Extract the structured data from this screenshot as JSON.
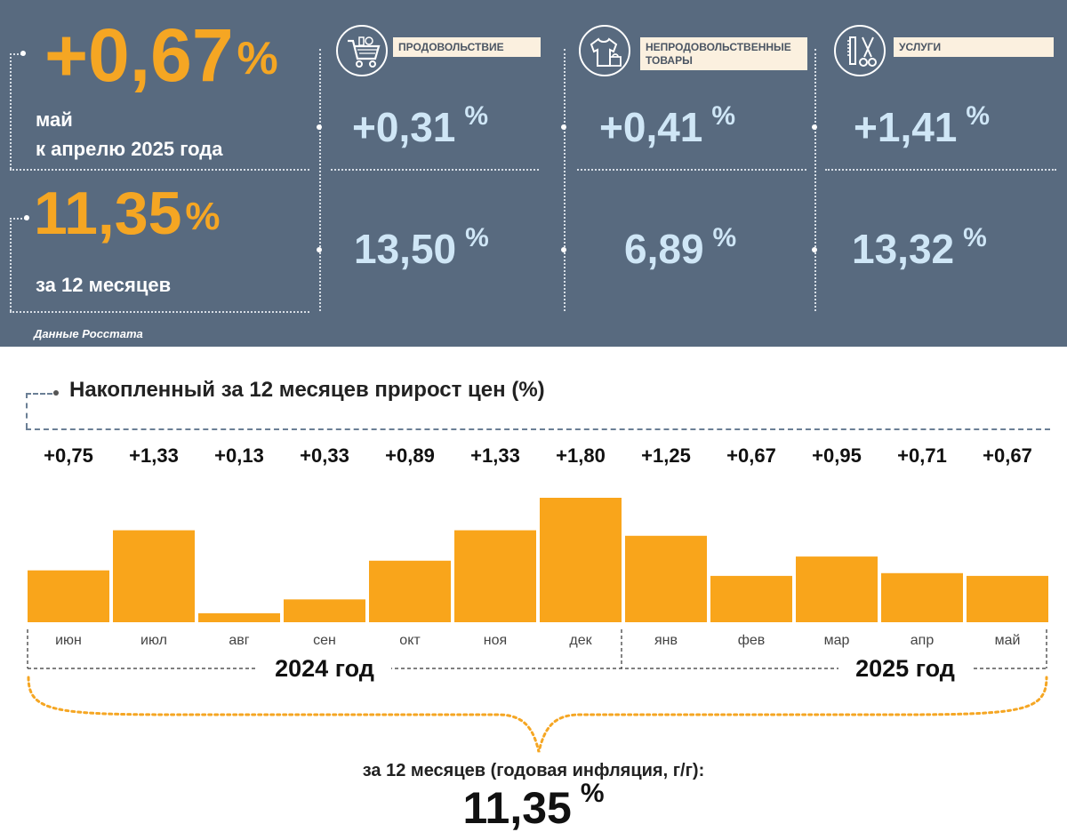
{
  "summary": {
    "monthly_value": "+0,67",
    "monthly_pct": "%",
    "monthly_caption_line1": "май",
    "monthly_caption_line2": "к апрелю 2025 года",
    "annual_value": "11,35",
    "annual_pct": "%",
    "annual_caption": "за 12 месяцев",
    "source": "Данные Росстата"
  },
  "categories": [
    {
      "name": "food",
      "icon": "shopping-cart-icon",
      "label": "ПРОДОВОЛЬСТВИЕ",
      "monthly": "+0,31",
      "annual": "13,50",
      "pct": "%"
    },
    {
      "name": "nonfood",
      "icon": "clothing-icon",
      "label": "НЕПРОДОВОЛЬСТВЕННЫЕ ТОВАРЫ",
      "monthly": "+0,41",
      "annual": "6,89",
      "pct": "%"
    },
    {
      "name": "services",
      "icon": "scissors-comb-icon",
      "label": "УСЛУГИ",
      "monthly": "+1,41",
      "annual": "13,32",
      "pct": "%"
    }
  ],
  "colors": {
    "panel": "#586a7f",
    "orange": "#f5a623",
    "light_blue": "#cfe6f6",
    "bar": "#f9a51b"
  },
  "chart_data": {
    "type": "bar",
    "title": "Накопленный за 12 месяцев прирост цен (%)",
    "categories": [
      "июн",
      "июл",
      "авг",
      "сен",
      "окт",
      "ноя",
      "дек",
      "янв",
      "фев",
      "мар",
      "апр",
      "май"
    ],
    "values": [
      0.75,
      1.33,
      0.13,
      0.33,
      0.89,
      1.33,
      1.8,
      1.25,
      0.67,
      0.95,
      0.71,
      0.67
    ],
    "value_labels": [
      "+0,75",
      "+1,33",
      "+0,13",
      "+0,33",
      "+0,89",
      "+1,33",
      "+1,80",
      "+1,25",
      "+0,67",
      "+0,95",
      "+0,71",
      "+0,67"
    ],
    "ylim": [
      0,
      1.8
    ],
    "years": [
      {
        "label": "2024 год",
        "months": 7
      },
      {
        "label": "2025 год",
        "months": 5
      }
    ]
  },
  "footer": {
    "caption": "за 12 месяцев (годовая инфляция, г/г):",
    "value": "11,35",
    "pct": "%"
  }
}
